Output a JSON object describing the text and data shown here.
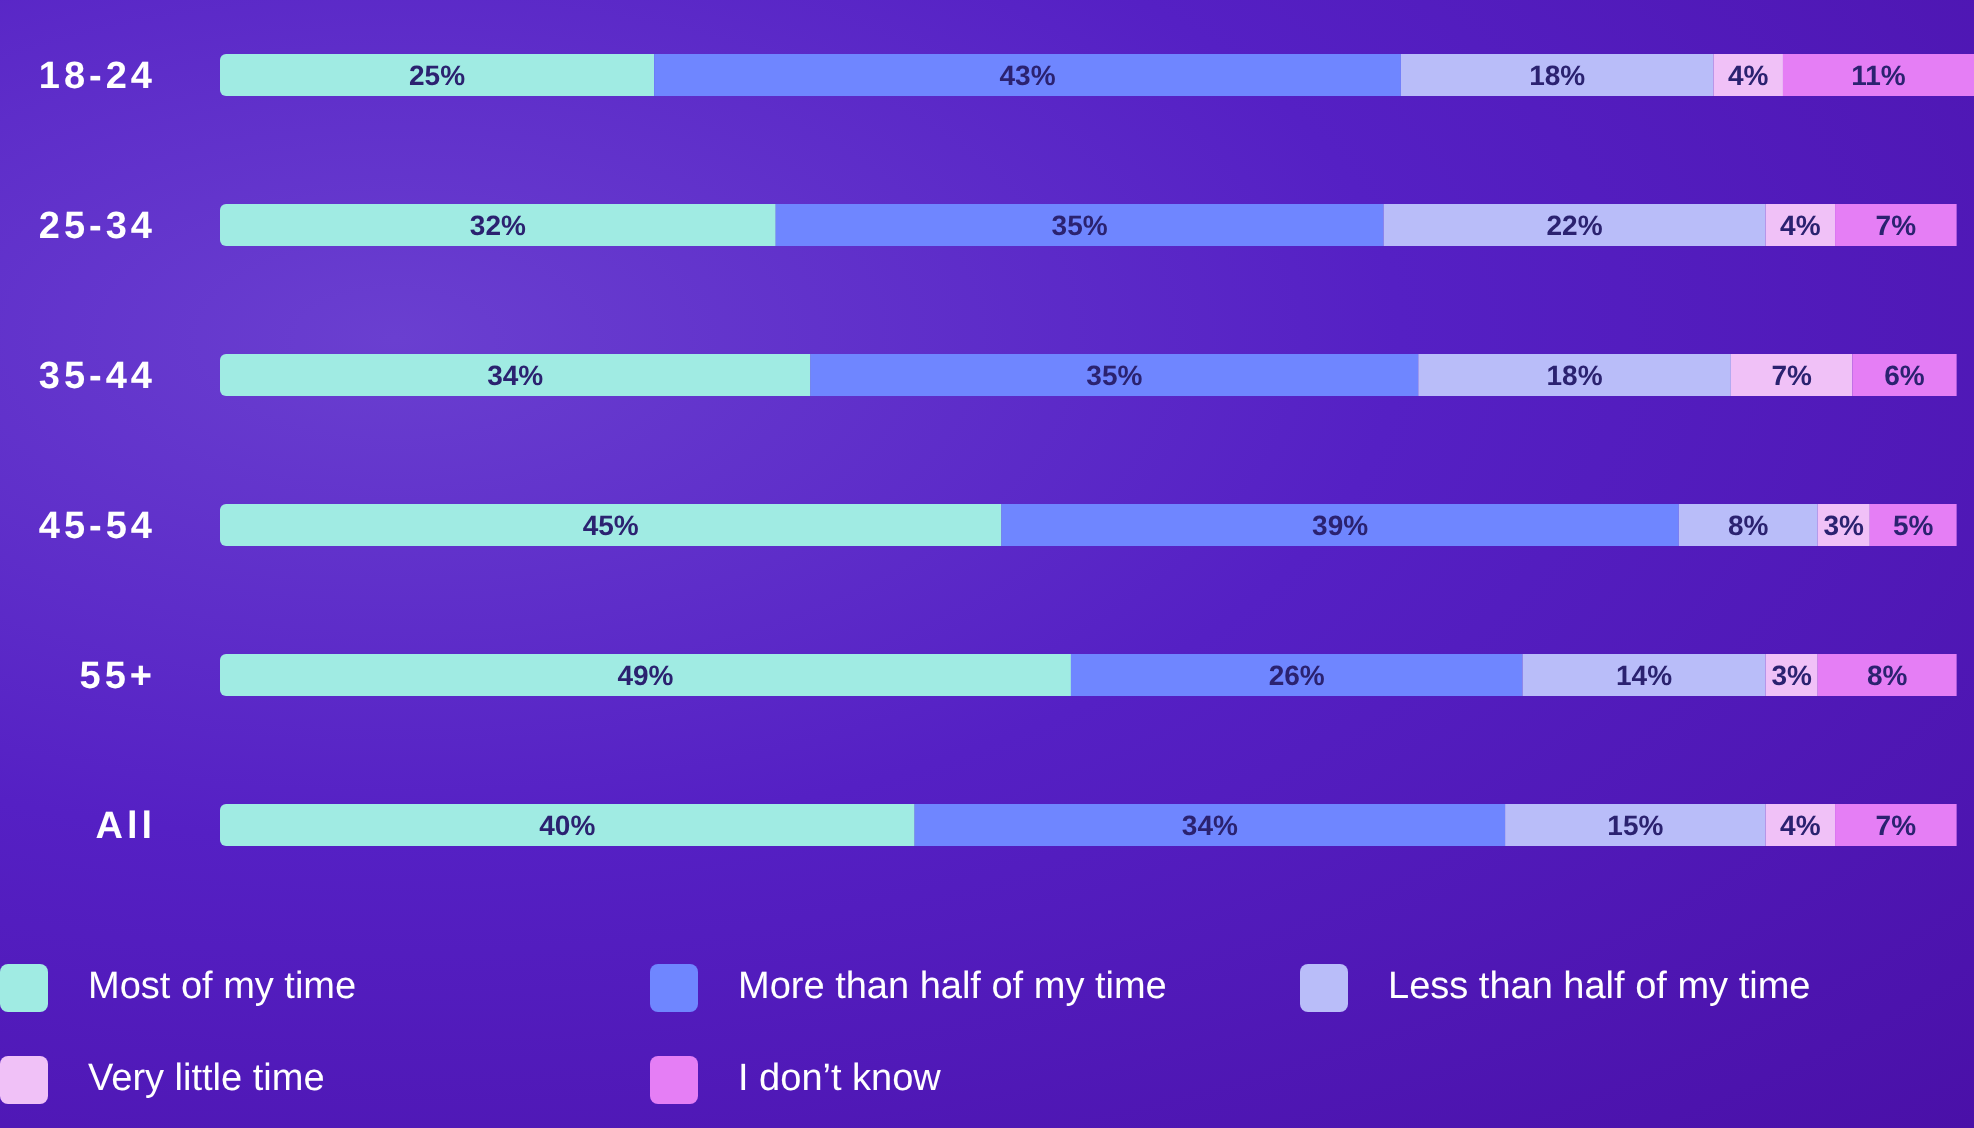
{
  "chart_data": {
    "type": "bar",
    "orientation": "horizontal",
    "stacked": true,
    "legend": "bottom",
    "grid": false,
    "categories": [
      "18-24",
      "25-34",
      "35-44",
      "45-54",
      "55+",
      "All"
    ],
    "series": [
      {
        "name": "Most of my time",
        "color": "#a0ebe3",
        "values": [
          25,
          32,
          34,
          45,
          49,
          40
        ],
        "value_labels": [
          "25%",
          "32%",
          "34%",
          "45%",
          "49%",
          "40%"
        ]
      },
      {
        "name": "More than half of my time",
        "color": "#6f86ff",
        "values": [
          43,
          35,
          35,
          39,
          26,
          34
        ],
        "value_labels": [
          "43%",
          "35%",
          "35%",
          "39%",
          "26%",
          "34%"
        ]
      },
      {
        "name": "Less than half of my time",
        "color": "#b9bdf9",
        "values": [
          18,
          22,
          18,
          8,
          14,
          15
        ],
        "value_labels": [
          "18%",
          "22%",
          "18%",
          "8%",
          "14%",
          "15%"
        ]
      },
      {
        "name": "Very little time",
        "color": "#f0c1f7",
        "values": [
          4,
          4,
          7,
          3,
          3,
          4
        ],
        "value_labels": [
          "4%",
          "4%",
          "7%",
          "3%",
          "3%",
          "4%"
        ]
      },
      {
        "name": "I don’t know",
        "color": "#e57ef5",
        "values": [
          11,
          7,
          6,
          5,
          8,
          7
        ],
        "value_labels": [
          "11%",
          "7%",
          "6%",
          "5%",
          "8%",
          "7%"
        ]
      }
    ]
  }
}
